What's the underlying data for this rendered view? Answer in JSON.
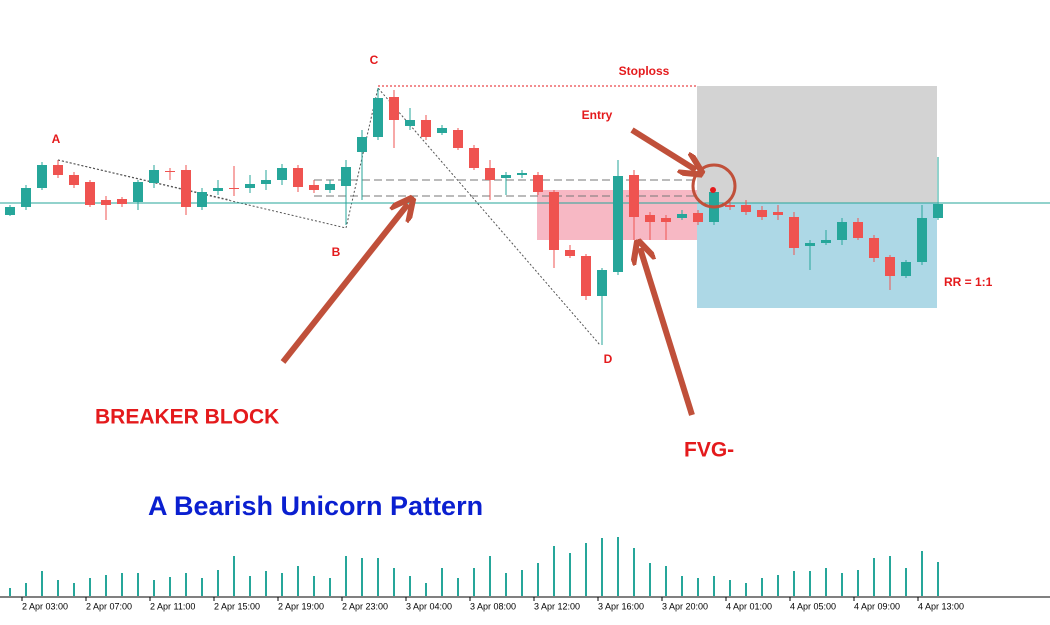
{
  "chart_data": {
    "type": "candlestick",
    "up_color": "#26a69a",
    "down_color": "#ef5350",
    "ylim": [
      100,
      500
    ],
    "categories": [
      null,
      "2 Apr 03:00",
      null,
      null,
      null,
      "2 Apr 07:00",
      null,
      null,
      null,
      "2 Apr 11:00",
      null,
      null,
      null,
      "2 Apr 15:00",
      null,
      null,
      null,
      "2 Apr 19:00",
      null,
      null,
      null,
      "2 Apr 23:00",
      null,
      null,
      null,
      "3 Apr 04:00",
      null,
      null,
      null,
      "3 Apr 08:00",
      null,
      null,
      null,
      "3 Apr 12:00",
      null,
      null,
      null,
      "3 Apr 16:00",
      null,
      null,
      null,
      "3 Apr 20:00",
      null,
      null,
      null,
      "4 Apr 01:00",
      null,
      null,
      null,
      "4 Apr 05:00",
      null,
      null,
      null,
      "4 Apr 09:00",
      null,
      null,
      null,
      "4 Apr 13:00",
      null
    ],
    "open": [
      285,
      293,
      312,
      335,
      325,
      318,
      300,
      301,
      298,
      317,
      329,
      330,
      293,
      309,
      312,
      312,
      316,
      320,
      332,
      315,
      310,
      314,
      348,
      363,
      403,
      374,
      380,
      367,
      370,
      352,
      332,
      322,
      325,
      325,
      308,
      250,
      244,
      204,
      228,
      325,
      285,
      282,
      282,
      287,
      278,
      295,
      295,
      290,
      288,
      283,
      254,
      257,
      260,
      278,
      262,
      243,
      224,
      238,
      282
    ],
    "high": [
      295,
      315,
      338,
      340,
      328,
      320,
      304,
      303,
      320,
      335,
      332,
      335,
      312,
      320,
      334,
      325,
      330,
      336,
      335,
      320,
      320,
      340,
      370,
      412,
      410,
      392,
      385,
      375,
      372,
      355,
      340,
      328,
      330,
      328,
      310,
      255,
      246,
      232,
      340,
      330,
      288,
      285,
      290,
      290,
      310,
      300,
      300,
      294,
      295,
      288,
      260,
      270,
      282,
      282,
      265,
      245,
      240,
      295,
      343
    ],
    "low": [
      284,
      290,
      310,
      322,
      312,
      293,
      280,
      293,
      290,
      312,
      320,
      285,
      290,
      305,
      304,
      307,
      310,
      315,
      308,
      307,
      307,
      275,
      300,
      360,
      352,
      370,
      360,
      365,
      350,
      330,
      300,
      305,
      322,
      305,
      232,
      242,
      200,
      155,
      225,
      260,
      260,
      260,
      280,
      275,
      275,
      290,
      285,
      280,
      280,
      245,
      230,
      255,
      255,
      260,
      238,
      210,
      222,
      235,
      280
    ],
    "close": [
      293,
      312,
      335,
      325,
      315,
      295,
      295,
      296,
      318,
      330,
      328,
      293,
      308,
      312,
      311,
      316,
      320,
      332,
      313,
      310,
      316,
      333,
      363,
      402,
      380,
      380,
      363,
      372,
      352,
      332,
      320,
      325,
      327,
      308,
      250,
      244,
      204,
      230,
      324,
      283,
      278,
      278,
      286,
      278,
      308,
      293,
      288,
      283,
      285,
      252,
      257,
      260,
      278,
      262,
      242,
      224,
      238,
      282,
      296
    ],
    "volume": {
      "color": "#26a69a",
      "ylim": [
        0,
        100
      ],
      "values": [
        8,
        13,
        25,
        16,
        13,
        18,
        21,
        23,
        23,
        16,
        19,
        23,
        18,
        26,
        40,
        20,
        25,
        23,
        30,
        20,
        18,
        40,
        38,
        38,
        28,
        20,
        13,
        28,
        18,
        28,
        40,
        23,
        26,
        33,
        50,
        43,
        53,
        58,
        59,
        48,
        33,
        30,
        20,
        18,
        20,
        16,
        13,
        18,
        21,
        25,
        25,
        28,
        23,
        26,
        38,
        40,
        28,
        45,
        34
      ]
    },
    "annotations": {
      "a": "A",
      "b": "B",
      "c": "C",
      "d": "D",
      "stoploss": "Stoploss",
      "entry": "Entry",
      "breaker": "BREAKER BLOCK",
      "fvg": "FVG-",
      "title": "A Bearish Unicorn Pattern",
      "rr": "RR = 1:1"
    }
  }
}
